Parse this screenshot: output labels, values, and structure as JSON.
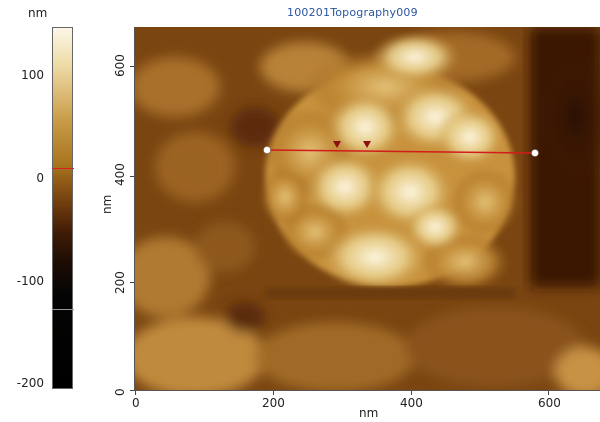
{
  "title": "100201Topography009",
  "colorbar": {
    "unit": "nm",
    "ticks": [
      "100",
      "0",
      "-100",
      "-200"
    ],
    "marker_colors": {
      "red": "#d82020",
      "gray": "#9a9a9a"
    }
  },
  "axes": {
    "x_label": "nm",
    "y_label": "nm",
    "x_ticks": [
      "0",
      "200",
      "400",
      "600"
    ],
    "y_ticks": [
      "0",
      "200",
      "400",
      "600"
    ]
  },
  "profile_line": {
    "color": "#d21c1c",
    "marker_color": "#8c1010"
  },
  "colors": {
    "title": "#2a55a0",
    "topography_dark": "#4a1f04",
    "topography_light": "#fbf1d5"
  }
}
